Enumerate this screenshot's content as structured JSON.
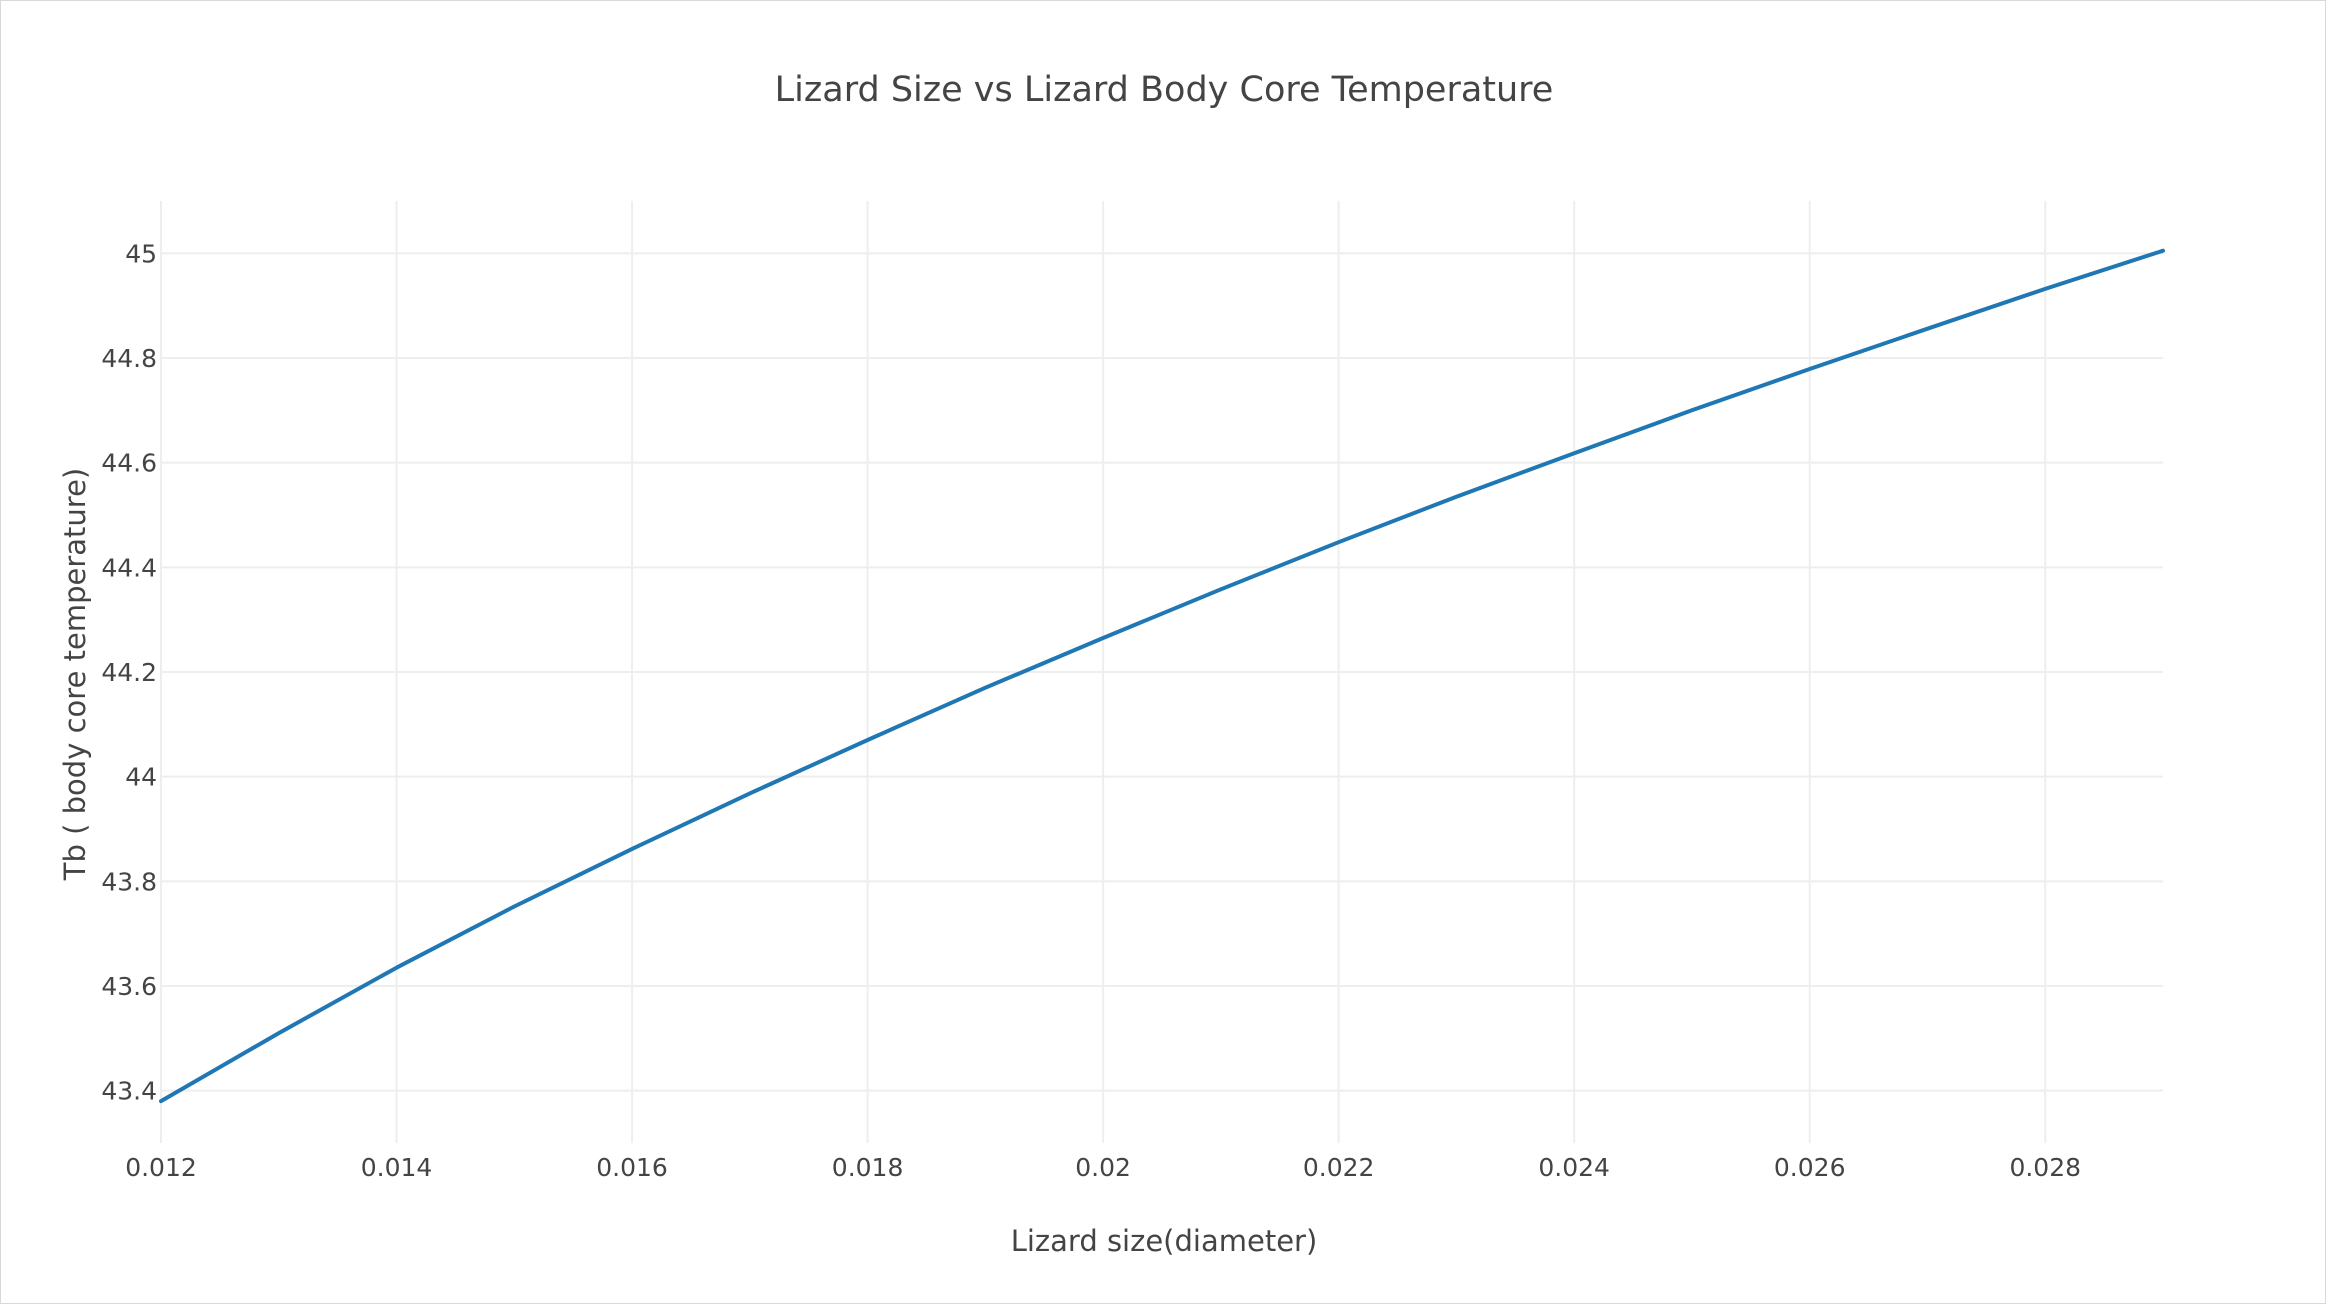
{
  "chart_data": {
    "type": "line",
    "title": "Lizard Size vs Lizard Body Core Temperature",
    "xlabel": "Lizard size(diameter)",
    "ylabel": "Tb ( body core temperature)",
    "xlim": [
      0.012,
      0.029
    ],
    "ylim": [
      43.3,
      45.1
    ],
    "grid": true,
    "x_ticks": [
      0.012,
      0.014,
      0.016,
      0.018,
      0.02,
      0.022,
      0.024,
      0.026,
      0.028
    ],
    "x_tick_labels": [
      "0.012",
      "0.014",
      "0.016",
      "0.018",
      "0.02",
      "0.022",
      "0.024",
      "0.026",
      "0.028"
    ],
    "y_ticks": [
      43.4,
      43.6,
      43.8,
      44,
      44.2,
      44.4,
      44.6,
      44.8,
      45
    ],
    "y_tick_labels": [
      "43.4",
      "43.6",
      "43.8",
      "44",
      "44.2",
      "44.4",
      "44.6",
      "44.8",
      "45"
    ],
    "series": [
      {
        "color": "#1f77b4",
        "x": [
          0.012,
          0.013,
          0.014,
          0.015,
          0.016,
          0.017,
          0.018,
          0.019,
          0.02,
          0.021,
          0.022,
          0.023,
          0.024,
          0.025,
          0.026,
          0.027,
          0.028,
          0.029
        ],
        "y": [
          43.38,
          43.51,
          43.635,
          43.752,
          43.862,
          43.968,
          44.07,
          44.17,
          44.265,
          44.358,
          44.448,
          44.535,
          44.618,
          44.7,
          44.779,
          44.856,
          44.932,
          45.005
        ]
      }
    ]
  }
}
